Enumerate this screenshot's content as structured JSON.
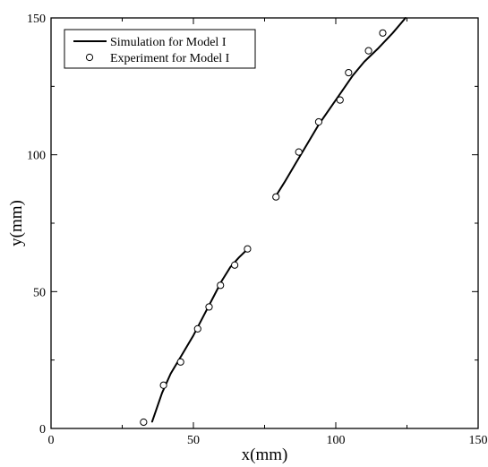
{
  "chart_data": {
    "type": "line+scatter",
    "xlabel": "x(mm)",
    "ylabel": "y(mm)",
    "xlim": [
      0,
      150
    ],
    "ylim": [
      0,
      150
    ],
    "xticks": [
      0,
      50,
      100,
      150
    ],
    "yticks": [
      0,
      50,
      100,
      150
    ],
    "grid": false,
    "legend_position": "top-left",
    "series": [
      {
        "name": "Simulation for Model I",
        "kind": "line",
        "color": "#000000",
        "segments": [
          [
            [
              35.5,
              2.5
            ],
            [
              37,
              7
            ],
            [
              39,
              13
            ],
            [
              42,
              20
            ],
            [
              46,
              27
            ],
            [
              50,
              34
            ],
            [
              54,
              42
            ],
            [
              57,
              48
            ],
            [
              60,
              54
            ],
            [
              63,
              59
            ],
            [
              66,
              62.5
            ],
            [
              69,
              65.5
            ]
          ],
          [
            [
              79,
              85
            ],
            [
              82,
              90
            ],
            [
              86,
              97
            ],
            [
              90,
              104
            ],
            [
              94,
              111
            ],
            [
              98,
              117
            ],
            [
              102,
              123
            ],
            [
              106,
              129
            ],
            [
              110,
              134
            ],
            [
              115,
              139
            ],
            [
              120,
              144.5
            ],
            [
              124.5,
              150
            ]
          ]
        ]
      },
      {
        "name": "Experiment for Model I",
        "kind": "scatter",
        "color": "#000000",
        "points": [
          [
            32.5,
            2.3
          ],
          [
            39.5,
            15.8
          ],
          [
            45.5,
            24.3
          ],
          [
            51.5,
            36.4
          ],
          [
            55.5,
            44.4
          ],
          [
            59.5,
            52.3
          ],
          [
            64.5,
            59.7
          ],
          [
            69,
            65.6
          ],
          [
            79,
            84.6
          ],
          [
            87,
            101
          ],
          [
            94,
            112
          ],
          [
            101.5,
            120
          ],
          [
            104.5,
            130
          ],
          [
            111.5,
            138
          ],
          [
            116.5,
            144.5
          ]
        ]
      }
    ]
  }
}
